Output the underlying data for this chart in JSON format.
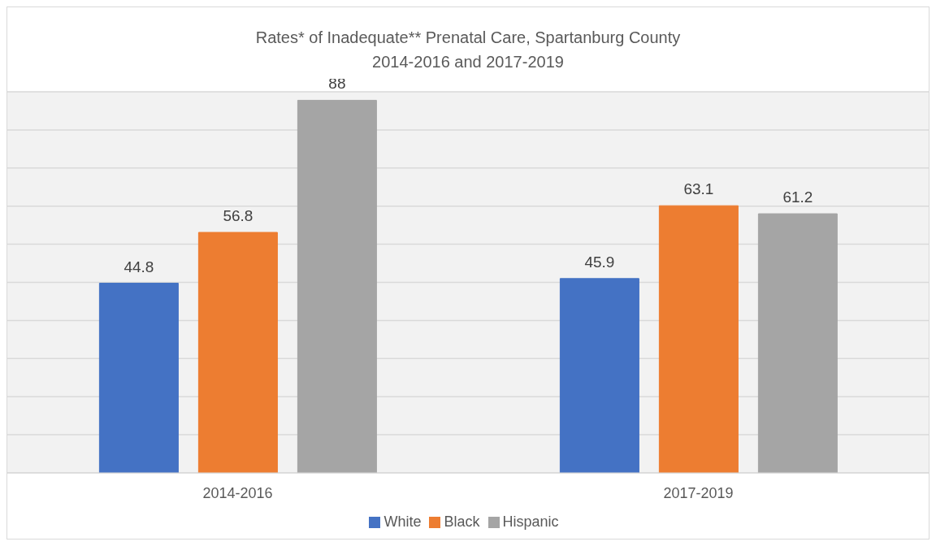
{
  "chart_data": {
    "type": "bar",
    "title": "Rates* of Inadequate** Prenatal Care, Spartanburg County\n2014-2016 and 2017-2019",
    "categories": [
      "2014-2016",
      "2017-2019"
    ],
    "series": [
      {
        "name": "White",
        "color": "#4472c4",
        "values": [
          44.8,
          45.9
        ]
      },
      {
        "name": "Black",
        "color": "#ed7d31",
        "values": [
          56.8,
          63.1
        ]
      },
      {
        "name": "Hispanic",
        "color": "#a5a5a5",
        "values": [
          88,
          61.2
        ]
      }
    ],
    "grid": "y",
    "tick_labels": "x",
    "data_labels": true,
    "legend": "bottom"
  }
}
